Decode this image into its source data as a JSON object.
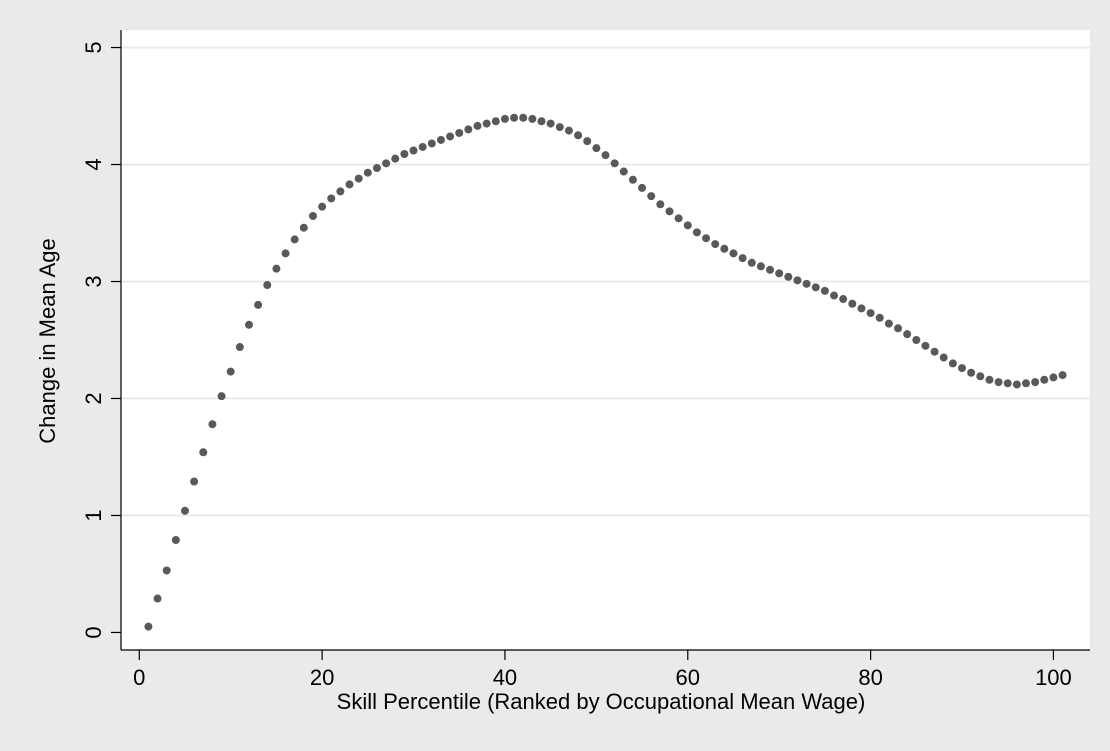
{
  "chart_data": {
    "type": "scatter",
    "title": "",
    "xlabel": "Skill Percentile (Ranked by Occupational Mean Wage)",
    "ylabel": "Change in Mean Age",
    "xlim": [
      -2,
      104
    ],
    "ylim": [
      -0.15,
      5.15
    ],
    "x_ticks": [
      0,
      20,
      40,
      60,
      80,
      100
    ],
    "y_ticks": [
      0,
      1,
      2,
      3,
      4,
      5
    ],
    "grid": "horizontal",
    "marker_color": "#595959",
    "background_color": "#eaeaea",
    "plot_color": "#ffffff",
    "gridline_color": "#eaeaea",
    "series": [
      {
        "x": [
          1,
          2,
          3,
          4,
          5,
          6,
          7,
          8,
          9,
          10,
          11,
          12,
          13,
          14,
          15,
          16,
          17,
          18,
          19,
          20,
          21,
          22,
          23,
          24,
          25,
          26,
          27,
          28,
          29,
          30,
          31,
          32,
          33,
          34,
          35,
          36,
          37,
          38,
          39,
          40,
          41,
          42,
          43,
          44,
          45,
          46,
          47,
          48,
          49,
          50,
          51,
          52,
          53,
          54,
          55,
          56,
          57,
          58,
          59,
          60,
          61,
          62,
          63,
          64,
          65,
          66,
          67,
          68,
          69,
          70,
          71,
          72,
          73,
          74,
          75,
          76,
          77,
          78,
          79,
          80,
          81,
          82,
          83,
          84,
          85,
          86,
          87,
          88,
          89,
          90,
          91,
          92,
          93,
          94,
          95,
          96,
          97,
          98,
          99,
          100,
          101
        ],
        "y": [
          0.05,
          0.29,
          0.53,
          0.79,
          1.04,
          1.29,
          1.54,
          1.78,
          2.02,
          2.23,
          2.44,
          2.63,
          2.8,
          2.97,
          3.11,
          3.24,
          3.36,
          3.46,
          3.56,
          3.64,
          3.71,
          3.77,
          3.83,
          3.88,
          3.93,
          3.97,
          4.01,
          4.05,
          4.09,
          4.12,
          4.15,
          4.18,
          4.21,
          4.24,
          4.27,
          4.3,
          4.33,
          4.35,
          4.37,
          4.39,
          4.4,
          4.4,
          4.39,
          4.37,
          4.35,
          4.32,
          4.29,
          4.25,
          4.2,
          4.14,
          4.08,
          4.01,
          3.94,
          3.87,
          3.8,
          3.73,
          3.66,
          3.6,
          3.54,
          3.48,
          3.42,
          3.37,
          3.32,
          3.28,
          3.24,
          3.2,
          3.16,
          3.13,
          3.1,
          3.07,
          3.04,
          3.01,
          2.98,
          2.95,
          2.92,
          2.88,
          2.85,
          2.81,
          2.77,
          2.73,
          2.69,
          2.64,
          2.6,
          2.55,
          2.5,
          2.45,
          2.4,
          2.35,
          2.3,
          2.26,
          2.22,
          2.19,
          2.16,
          2.14,
          2.13,
          2.12,
          2.13,
          2.14,
          2.16,
          2.18,
          2.2
        ]
      }
    ]
  }
}
